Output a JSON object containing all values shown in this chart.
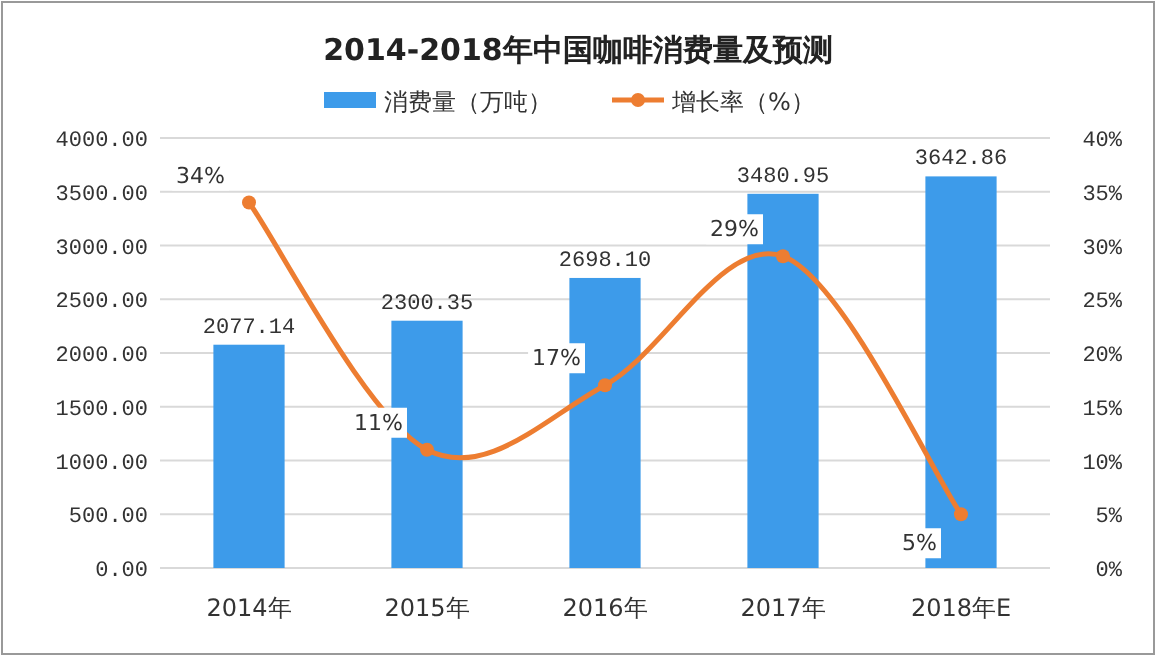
{
  "chart_data": {
    "type": "bar",
    "title": "2014-2018年中国咖啡消费量及预测",
    "categories": [
      "2014年",
      "2015年",
      "2016年",
      "2017年",
      "2018年E"
    ],
    "series": [
      {
        "name": "消费量（万吨）",
        "color": "#3d9bea",
        "values": [
          2077.14,
          2300.35,
          2698.1,
          3480.95,
          3642.86
        ],
        "value_labels": [
          "2077.14",
          "2300.35",
          "2698.10",
          "3480.95",
          "3642.86"
        ]
      },
      {
        "name": "增长率（%）",
        "type": "line",
        "axis": "y2",
        "color": "#ed7d31",
        "marker": "circle",
        "values": [
          34,
          11,
          17,
          29,
          5
        ],
        "value_labels": [
          "34%",
          "11%",
          "17%",
          "29%",
          "5%"
        ]
      }
    ],
    "ylim": [
      0,
      4000
    ],
    "yticks": [
      {
        "value": 0,
        "label": "0.00"
      },
      {
        "value": 500,
        "label": "500.00"
      },
      {
        "value": 1000,
        "label": "1000.00"
      },
      {
        "value": 1500,
        "label": "1500.00"
      },
      {
        "value": 2000,
        "label": "2000.00"
      },
      {
        "value": 2500,
        "label": "2500.00"
      },
      {
        "value": 3000,
        "label": "3000.00"
      },
      {
        "value": 3500,
        "label": "3500.00"
      },
      {
        "value": 4000,
        "label": "4000.00"
      }
    ],
    "y2lim": [
      0,
      40
    ],
    "y2ticks": [
      {
        "value": 0,
        "label": "0%"
      },
      {
        "value": 5,
        "label": "5%"
      },
      {
        "value": 10,
        "label": "10%"
      },
      {
        "value": 15,
        "label": "15%"
      },
      {
        "value": 20,
        "label": "20%"
      },
      {
        "value": 25,
        "label": "25%"
      },
      {
        "value": 30,
        "label": "30%"
      },
      {
        "value": 35,
        "label": "35%"
      },
      {
        "value": 40,
        "label": "40%"
      }
    ],
    "grid": "y",
    "legend": "top"
  }
}
